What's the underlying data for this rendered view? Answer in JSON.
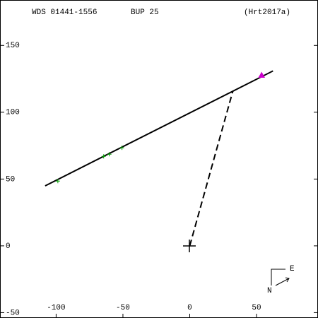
{
  "chart_data": {
    "type": "scatter",
    "title": "WDS 01441-1556",
    "discoverer": "BUP  25",
    "reference": "(Hrt2017a)",
    "annotations": [
      "E",
      "N"
    ],
    "xlim": [
      -142,
      96
    ],
    "ylim": [
      -54,
      184
    ],
    "xticks": [
      -100,
      -50,
      0,
      50
    ],
    "yticks": [
      150,
      100,
      50,
      0,
      -50
    ],
    "series": [
      {
        "style": "line",
        "color": "#000000",
        "x": [
          -108.2,
          62.3
        ],
        "values": [
          44.9,
          130.9
        ]
      },
      {
        "style": "dashed",
        "color": "#000000",
        "x": [
          0,
          32.2
        ],
        "values": [
          0,
          115.6
        ]
      },
      {
        "style": "plus",
        "color": "#00a000",
        "x": [
          -98.7,
          -64.4,
          -60.2,
          -50.7
        ],
        "values": [
          48.5,
          67,
          68.6,
          73.4
        ]
      },
      {
        "style": "triangle",
        "color": "#cc00cc",
        "x": [
          53.8
        ],
        "values": [
          127.7
        ]
      }
    ]
  }
}
